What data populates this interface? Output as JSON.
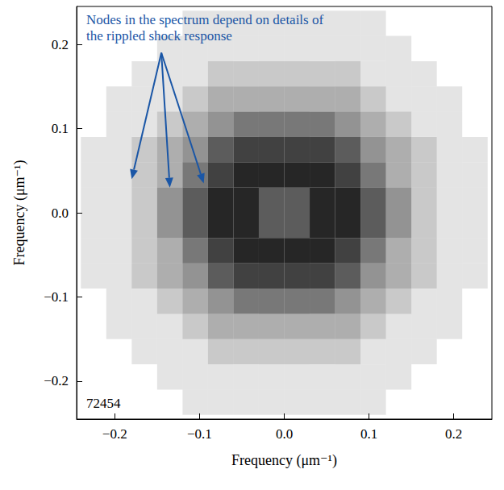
{
  "chart_data": {
    "type": "heatmap",
    "x_label": "Frequency (μm⁻¹)",
    "y_label": "Frequency (μm⁻¹)",
    "xlim": [
      -0.245,
      0.245
    ],
    "ylim": [
      -0.245,
      0.245
    ],
    "xticks": [
      {
        "value": -0.2,
        "label": "−0.2"
      },
      {
        "value": -0.1,
        "label": "−0.1"
      },
      {
        "value": 0,
        "label": "0.0"
      },
      0.1,
      0.2
    ],
    "yticks": [
      {
        "value": -0.2,
        "label": "−0.2"
      },
      {
        "value": -0.1,
        "label": "−0.1"
      },
      {
        "value": 0,
        "label": "0.0"
      },
      0.1,
      0.2
    ],
    "color": "#000000",
    "grid": false,
    "cells": {
      "x_edges": [
        -0.24,
        -0.21,
        -0.18,
        -0.15,
        -0.12,
        -0.09,
        -0.06,
        -0.03,
        0,
        0.03,
        0.06,
        0.09,
        0.12,
        0.15,
        0.18,
        0.21,
        0.24
      ],
      "y_edges": [
        0.24,
        0.21,
        0.18,
        0.15,
        0.12,
        0.09,
        0.06,
        0.03,
        0,
        -0.03,
        -0.06,
        -0.09,
        -0.12,
        -0.15,
        -0.18,
        -0.21,
        -0.24
      ],
      "density": [
        [
          0,
          0,
          0,
          0,
          1,
          1,
          1,
          1,
          1,
          1,
          1,
          1,
          0,
          0,
          0,
          0
        ],
        [
          0,
          0,
          0,
          1,
          1,
          1,
          1,
          1,
          1,
          1,
          1,
          1,
          1,
          0,
          0,
          0
        ],
        [
          0,
          0,
          1,
          1,
          1,
          2,
          2,
          2,
          2,
          2,
          2,
          1,
          1,
          1,
          0,
          0
        ],
        [
          0,
          1,
          1,
          1,
          2,
          3,
          3,
          3,
          3,
          3,
          3,
          2,
          1,
          1,
          1,
          0
        ],
        [
          0,
          1,
          1,
          2,
          3,
          4,
          5,
          5,
          5,
          5,
          4,
          3,
          2,
          1,
          1,
          0
        ],
        [
          1,
          1,
          2,
          3,
          4,
          6,
          7,
          7,
          7,
          7,
          6,
          4,
          3,
          2,
          1,
          1
        ],
        [
          1,
          1,
          2,
          3,
          5,
          7,
          8,
          8,
          8,
          8,
          7,
          5,
          3,
          2,
          1,
          1
        ],
        [
          1,
          1,
          2,
          4,
          6,
          8,
          8,
          6,
          6,
          8,
          8,
          6,
          4,
          2,
          1,
          1
        ],
        [
          1,
          1,
          2,
          4,
          6,
          8,
          8,
          6,
          6,
          8,
          8,
          6,
          4,
          2,
          1,
          1
        ],
        [
          1,
          1,
          2,
          3,
          5,
          7,
          8,
          8,
          8,
          8,
          7,
          5,
          3,
          2,
          1,
          1
        ],
        [
          1,
          1,
          2,
          3,
          4,
          6,
          7,
          7,
          7,
          7,
          6,
          4,
          3,
          2,
          1,
          1
        ],
        [
          0,
          1,
          1,
          2,
          3,
          4,
          5,
          5,
          5,
          5,
          4,
          3,
          2,
          1,
          1,
          0
        ],
        [
          0,
          1,
          1,
          1,
          2,
          3,
          3,
          3,
          3,
          3,
          3,
          2,
          1,
          1,
          1,
          0
        ],
        [
          0,
          0,
          1,
          1,
          1,
          2,
          2,
          2,
          2,
          2,
          2,
          1,
          1,
          1,
          0,
          0
        ],
        [
          0,
          0,
          0,
          1,
          1,
          1,
          1,
          1,
          1,
          1,
          1,
          1,
          1,
          0,
          0,
          0
        ],
        [
          0,
          0,
          0,
          0,
          1,
          1,
          1,
          1,
          1,
          1,
          1,
          1,
          0,
          0,
          0,
          0
        ]
      ]
    },
    "annotation": {
      "text": "Nodes in the spectrum depend on details of the rippled shock response",
      "color": "#1a56a6",
      "arrow_from": [
        -0.145,
        0.19
      ],
      "arrow_to": [
        [
          -0.18,
          0.04
        ],
        [
          -0.135,
          0.03
        ],
        [
          -0.095,
          0.035
        ]
      ]
    },
    "label": "72454"
  }
}
